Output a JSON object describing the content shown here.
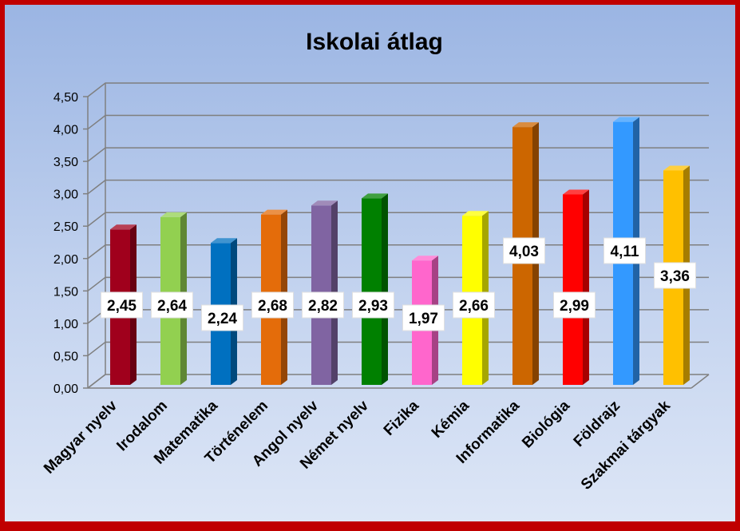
{
  "chart_data": {
    "type": "bar",
    "title": "Iskolai átlag",
    "xlabel": "",
    "ylabel": "",
    "ylim": [
      0,
      4.5
    ],
    "y_ticks": [
      "0,00",
      "0,50",
      "1,00",
      "1,50",
      "2,00",
      "2,50",
      "3,00",
      "3,50",
      "4,00",
      "4,50"
    ],
    "grid": true,
    "legend": "none",
    "categories": [
      "Magyar nyelv",
      "Irodalom",
      "Matematika",
      "Történelem",
      "Angol nyelv",
      "Német nyelv",
      "Fizika",
      "Kémia",
      "Informatika",
      "Biológia",
      "Földrajz",
      "Szakmai tárgyak"
    ],
    "values": [
      2.45,
      2.64,
      2.24,
      2.68,
      2.82,
      2.93,
      1.97,
      2.66,
      4.03,
      2.99,
      4.11,
      3.36
    ],
    "data_labels": [
      "2,45",
      "2,64",
      "2,24",
      "2,68",
      "2,82",
      "2,93",
      "1,97",
      "2,66",
      "4,03",
      "2,99",
      "4,11",
      "3,36"
    ],
    "colors": [
      "#a0001c",
      "#92d050",
      "#0070c0",
      "#e46c0a",
      "#8064a2",
      "#008000",
      "#ff66cc",
      "#ffff00",
      "#cc6600",
      "#ff0000",
      "#3399ff",
      "#ffc000"
    ]
  }
}
